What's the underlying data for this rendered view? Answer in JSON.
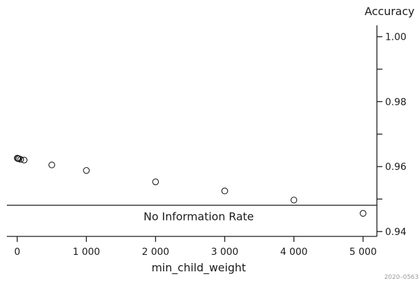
{
  "chart_data": {
    "type": "scatter",
    "xlabel": "min_child_weight",
    "ylabel": "Accuracy",
    "x_ticks": [
      0,
      1000,
      2000,
      3000,
      4000,
      5000
    ],
    "x_tick_labels": [
      "0",
      "1 000",
      "2 000",
      "3 000",
      "4 000",
      "5 000"
    ],
    "y_ticks": [
      0.94,
      0.96,
      0.98,
      1.0
    ],
    "y_tick_labels": [
      "0.94",
      "0.96",
      "0.98",
      "1.00"
    ],
    "y_minor_ticks": [
      0.95,
      0.97,
      0.99
    ],
    "xlim": [
      -150,
      5200
    ],
    "ylim": [
      0.9385,
      1.0035
    ],
    "y_axis_side": "right",
    "grid": false,
    "points": [
      {
        "x": 1,
        "y": 0.9626
      },
      {
        "x": 10,
        "y": 0.9625
      },
      {
        "x": 25,
        "y": 0.9624
      },
      {
        "x": 50,
        "y": 0.9622
      },
      {
        "x": 100,
        "y": 0.962
      },
      {
        "x": 500,
        "y": 0.9605
      },
      {
        "x": 1000,
        "y": 0.9588
      },
      {
        "x": 2000,
        "y": 0.9553
      },
      {
        "x": 3000,
        "y": 0.9525
      },
      {
        "x": 4000,
        "y": 0.9497
      },
      {
        "x": 5000,
        "y": 0.9456
      }
    ],
    "reference_line": {
      "y": 0.9481,
      "label": "No Information Rate"
    }
  },
  "corner_note": "2020–0563"
}
